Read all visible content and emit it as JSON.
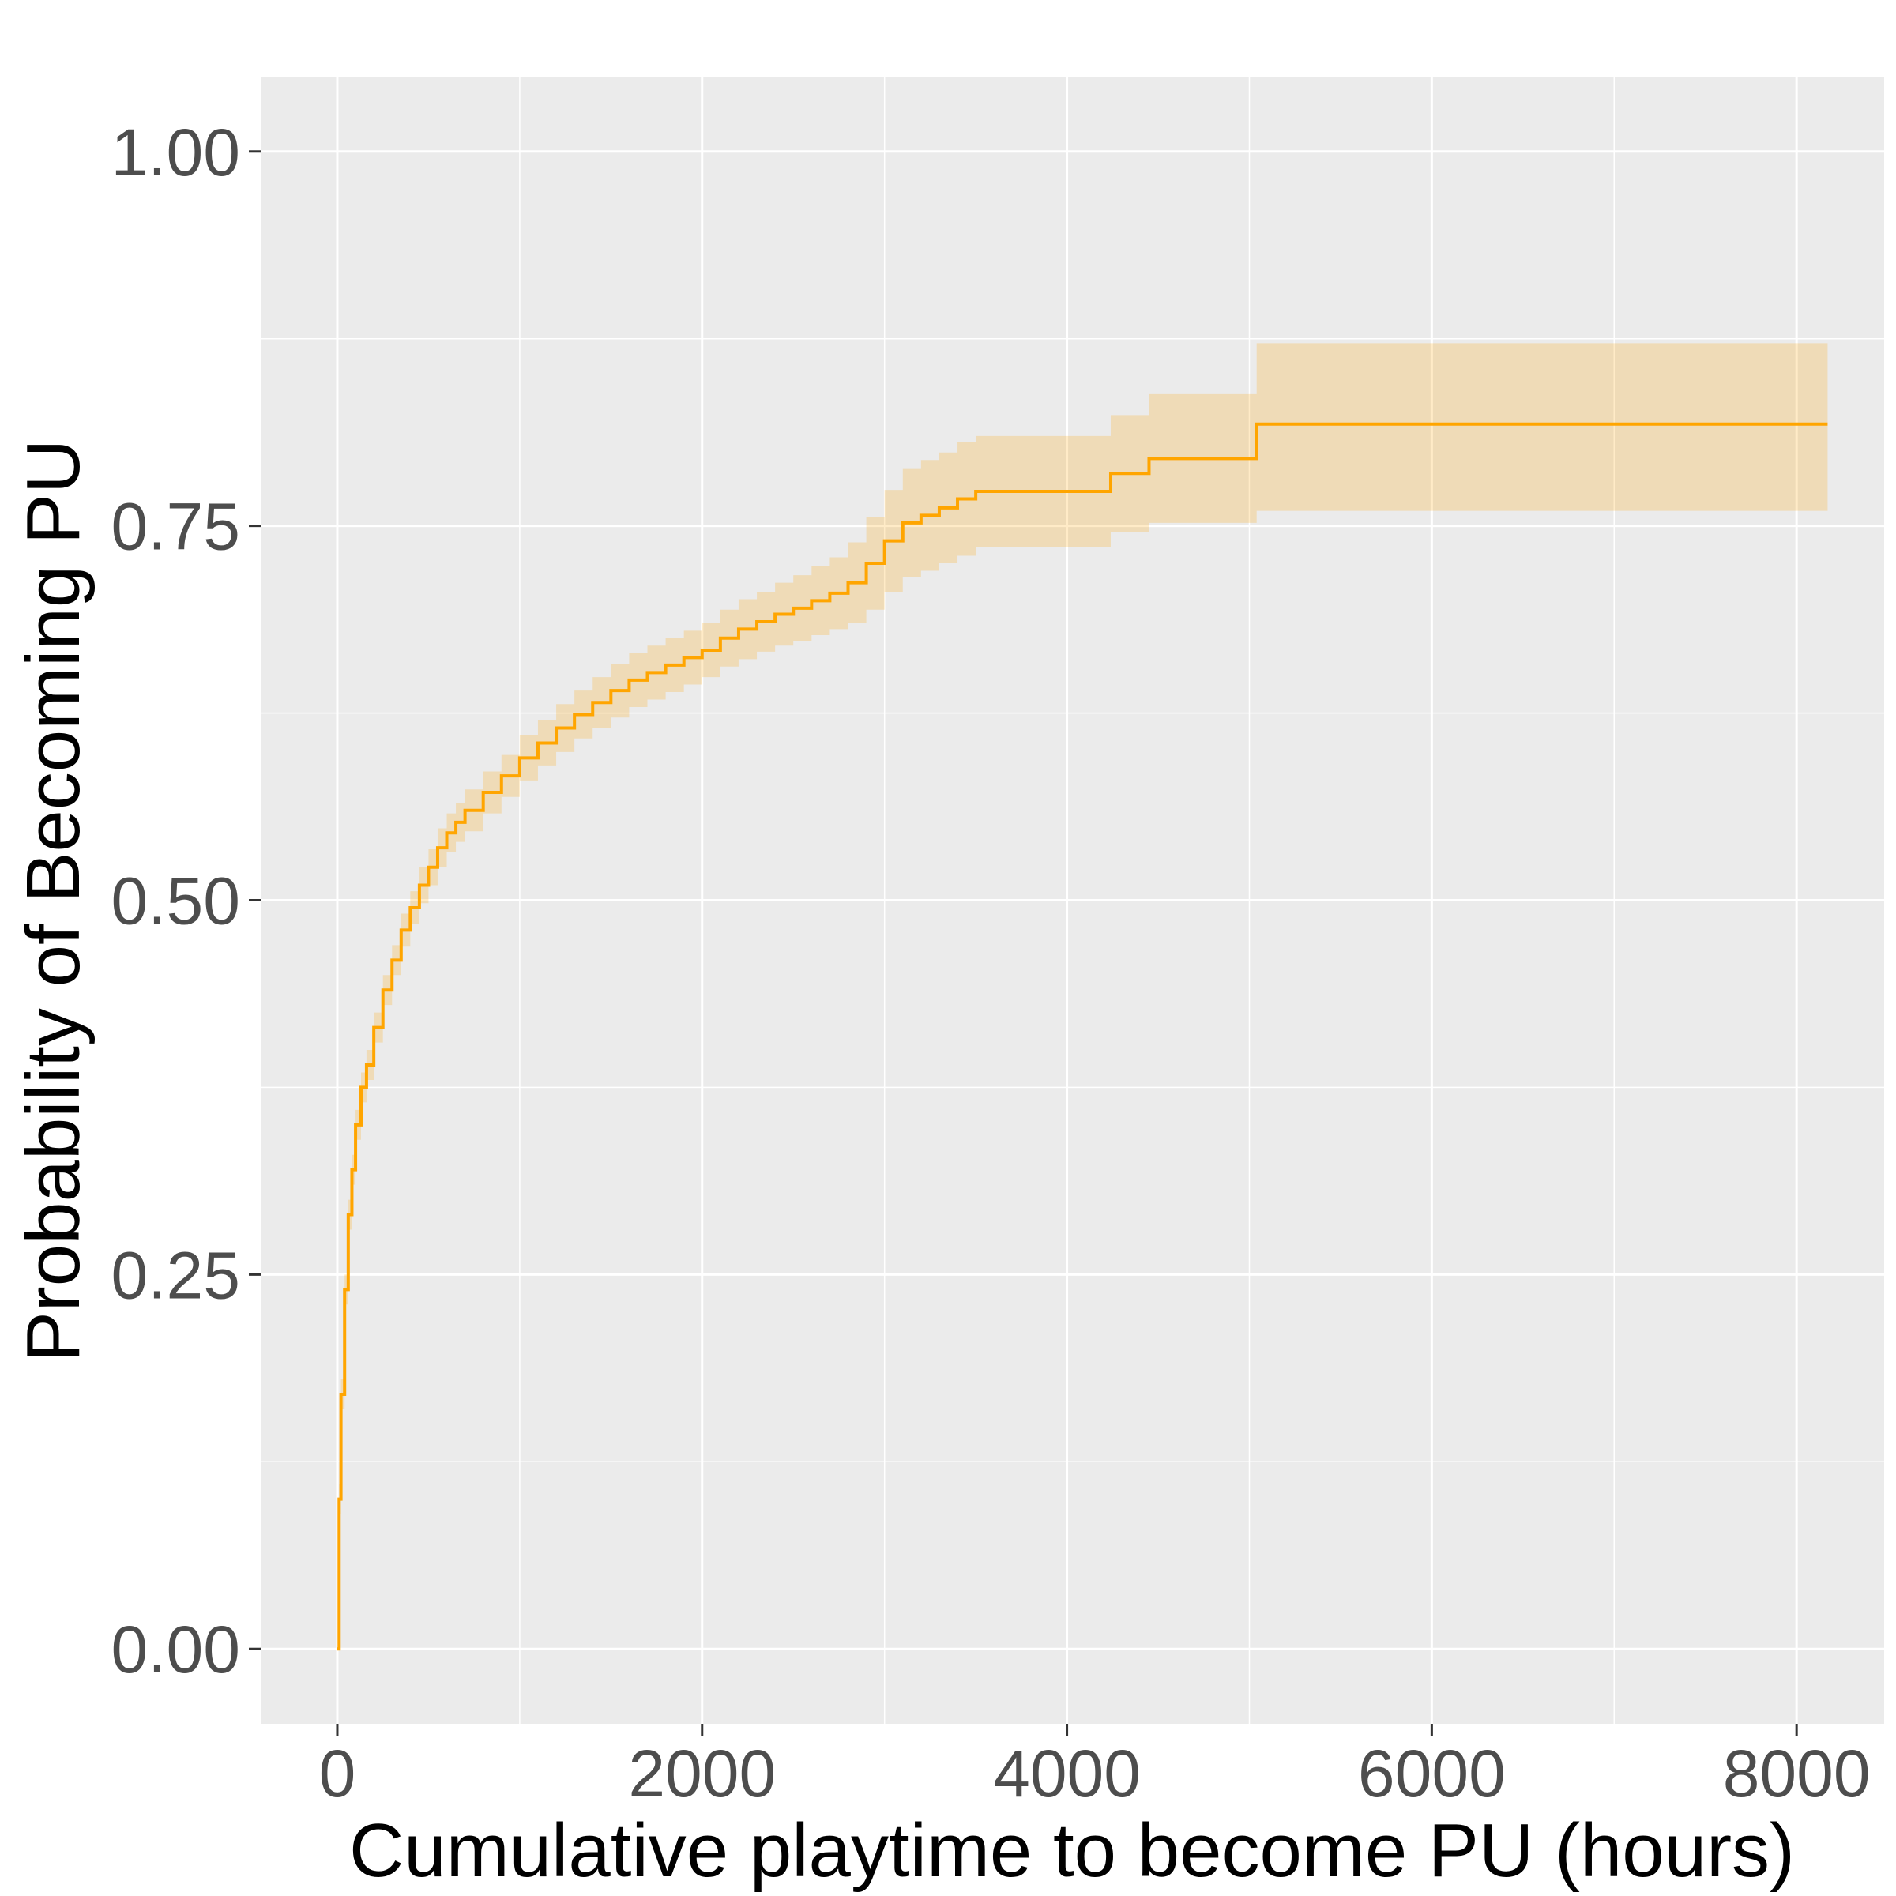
{
  "chart_data": {
    "type": "line",
    "xlabel": "Cumulative playtime to become PU (hours)",
    "ylabel": "Probability of Becoming PU",
    "xlim": [
      -420,
      8480
    ],
    "ylim": [
      -0.05,
      1.05
    ],
    "x_ticks": [
      0,
      2000,
      4000,
      6000,
      8000
    ],
    "x_tick_labels": [
      "0",
      "2000",
      "4000",
      "6000",
      "8000"
    ],
    "x_minor_ticks": [
      1000,
      3000,
      5000,
      7000
    ],
    "y_ticks": [
      0,
      0.25,
      0.5,
      0.75,
      1.0
    ],
    "y_tick_labels": [
      "0.00",
      "0.25",
      "0.50",
      "0.75",
      "1.00"
    ],
    "y_minor_ticks": [
      0.125,
      0.375,
      0.625,
      0.875
    ],
    "grid": true,
    "legend": "none",
    "series": [
      {
        "x": [
          0,
          10,
          20,
          40,
          60,
          80,
          100,
          130,
          160,
          200,
          250,
          300,
          350,
          400,
          450,
          500,
          550,
          600,
          650,
          700,
          800,
          900,
          1000,
          1100,
          1200,
          1300,
          1400,
          1500,
          1600,
          1700,
          1800,
          1900,
          2000,
          2100,
          2200,
          2300,
          2400,
          2500,
          2600,
          2700,
          2800,
          2900,
          3000,
          3100,
          3200,
          3300,
          3400,
          3500,
          4000,
          4240,
          4450,
          5040,
          8170
        ],
        "y": [
          0.0,
          0.1,
          0.17,
          0.24,
          0.29,
          0.32,
          0.35,
          0.375,
          0.39,
          0.415,
          0.44,
          0.46,
          0.48,
          0.495,
          0.51,
          0.522,
          0.535,
          0.545,
          0.552,
          0.56,
          0.572,
          0.583,
          0.595,
          0.605,
          0.615,
          0.624,
          0.632,
          0.64,
          0.647,
          0.652,
          0.657,
          0.662,
          0.667,
          0.675,
          0.681,
          0.686,
          0.691,
          0.695,
          0.7,
          0.705,
          0.712,
          0.725,
          0.74,
          0.752,
          0.757,
          0.762,
          0.768,
          0.773,
          0.773,
          0.785,
          0.795,
          0.818,
          0.818
        ],
        "lower": [
          0.0,
          0.09,
          0.16,
          0.23,
          0.28,
          0.31,
          0.34,
          0.365,
          0.38,
          0.405,
          0.43,
          0.45,
          0.469,
          0.484,
          0.498,
          0.51,
          0.522,
          0.532,
          0.539,
          0.546,
          0.558,
          0.569,
          0.58,
          0.59,
          0.599,
          0.608,
          0.615,
          0.622,
          0.629,
          0.634,
          0.639,
          0.644,
          0.649,
          0.656,
          0.661,
          0.666,
          0.67,
          0.673,
          0.677,
          0.681,
          0.685,
          0.694,
          0.706,
          0.716,
          0.72,
          0.725,
          0.73,
          0.736,
          0.736,
          0.746,
          0.752,
          0.76,
          0.76
        ],
        "upper": [
          0.0,
          0.11,
          0.18,
          0.25,
          0.3,
          0.33,
          0.36,
          0.385,
          0.4,
          0.425,
          0.45,
          0.47,
          0.491,
          0.506,
          0.522,
          0.534,
          0.548,
          0.558,
          0.565,
          0.574,
          0.586,
          0.597,
          0.61,
          0.62,
          0.631,
          0.64,
          0.649,
          0.658,
          0.665,
          0.67,
          0.675,
          0.68,
          0.685,
          0.694,
          0.701,
          0.706,
          0.712,
          0.717,
          0.723,
          0.729,
          0.739,
          0.756,
          0.774,
          0.788,
          0.794,
          0.799,
          0.806,
          0.81,
          0.81,
          0.824,
          0.838,
          0.872,
          0.872
        ]
      }
    ],
    "colors": {
      "line": "#ffa500",
      "band": "#ffa500",
      "panel": "#ebebeb",
      "grid": "#ffffff",
      "tick": "#333333"
    }
  }
}
